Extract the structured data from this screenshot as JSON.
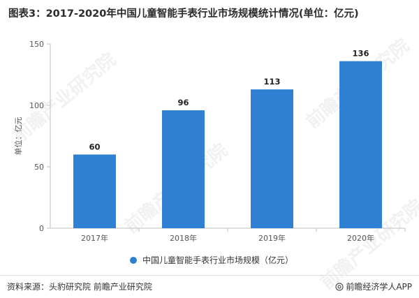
{
  "title": "图表3：2017-2020年中国儿童智能手表行业市场规模统计情况(单位：亿元)",
  "chart_data": {
    "type": "bar",
    "categories": [
      "2017年",
      "2018年",
      "2019年",
      "2020年"
    ],
    "series": [
      {
        "name": "中国儿童智能手表行业市场规模（亿元）",
        "values": [
          60,
          96,
          113,
          136
        ],
        "color": "#2f7fd3"
      }
    ],
    "ylabel": "单位：亿元",
    "ylim": [
      0,
      150
    ],
    "yticks": [
      "0",
      "50",
      "100",
      "150"
    ],
    "data_labels": [
      "60",
      "96",
      "113",
      "136"
    ],
    "grid": false,
    "legend_position": "bottom"
  },
  "legend": {
    "label": "中国儿童智能手表行业市场规模（亿元）",
    "icon": "circle"
  },
  "footer": {
    "source": "资料来源：头豹研究院 前瞻产业研究院",
    "brand": "前瞻经济学人APP",
    "brand_icon": "at-icon"
  },
  "watermark": {
    "text": "前瞻产业研究院"
  },
  "colors": {
    "bar": "#2f7fd3",
    "axis": "#bfbfbf",
    "text": "#333333"
  }
}
